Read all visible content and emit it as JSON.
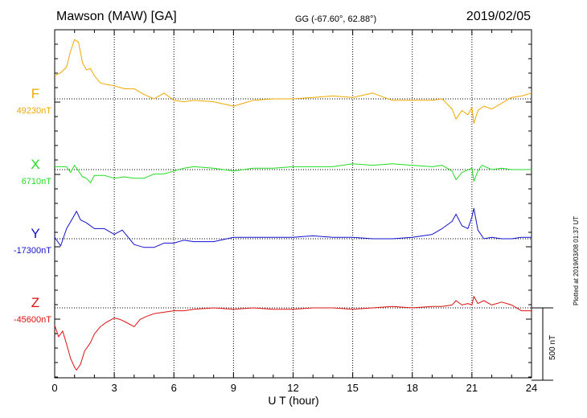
{
  "header": {
    "title": "Mawson (MAW)  [GA]",
    "coords": "GG (-67.60°,  62.88°)",
    "date": "2019/02/05"
  },
  "footer": {
    "plotted": "Plotted at 2019/03/08 01:37 UT",
    "scale_label": "500 nT"
  },
  "chart_data": {
    "type": "line",
    "xlabel": "U T (hour)",
    "xlim": [
      0,
      24
    ],
    "xticks": [
      "0",
      "3",
      "6",
      "9",
      "12",
      "15",
      "18",
      "21",
      "24"
    ],
    "y_unit": "nT",
    "scale_bar_nT": 500,
    "grid": "dotted vertical every 3 hours, dotted baseline per component",
    "series": [
      {
        "name": "F",
        "baseline_label": "49230nT",
        "baseline": 49230,
        "color": "#f0a800",
        "x": [
          0,
          0.3,
          0.6,
          0.8,
          1.0,
          1.2,
          1.4,
          1.6,
          1.8,
          2.0,
          2.3,
          2.6,
          3.0,
          3.5,
          4.0,
          4.5,
          5.0,
          5.5,
          6.0,
          6.5,
          7.0,
          8.0,
          9.0,
          10,
          11,
          12,
          13,
          14,
          15,
          16,
          17,
          18,
          19,
          19.5,
          20,
          20.2,
          20.5,
          20.8,
          21,
          21.1,
          21.3,
          21.6,
          22,
          22.5,
          23,
          23.5,
          24
        ],
        "values": [
          49390,
          49410,
          49450,
          49560,
          49640,
          49620,
          49480,
          49430,
          49440,
          49390,
          49340,
          49330,
          49320,
          49300,
          49300,
          49260,
          49230,
          49270,
          49220,
          49210,
          49220,
          49210,
          49180,
          49220,
          49230,
          49230,
          49240,
          49250,
          49240,
          49270,
          49220,
          49220,
          49220,
          49230,
          49160,
          49090,
          49150,
          49120,
          49170,
          49060,
          49150,
          49180,
          49160,
          49200,
          49240,
          49250,
          49270
        ]
      },
      {
        "name": "X",
        "baseline_label": "6710nT",
        "baseline": 6710,
        "color": "#22dd22",
        "x": [
          0,
          0.3,
          0.6,
          0.8,
          1.0,
          1.2,
          1.4,
          1.6,
          1.8,
          2.0,
          2.5,
          3.0,
          3.5,
          4.0,
          4.5,
          5.0,
          5.5,
          6.0,
          6.5,
          7.0,
          8.0,
          9.0,
          10,
          11,
          12,
          13,
          14,
          15,
          16,
          17,
          18,
          19,
          19.5,
          20,
          20.2,
          20.5,
          21,
          21.1,
          21.3,
          21.5,
          22,
          22.5,
          23,
          23.5,
          24
        ],
        "values": [
          6730,
          6730,
          6730,
          6690,
          6740,
          6700,
          6660,
          6650,
          6620,
          6670,
          6670,
          6650,
          6660,
          6650,
          6650,
          6680,
          6680,
          6700,
          6720,
          6730,
          6720,
          6700,
          6720,
          6720,
          6730,
          6730,
          6730,
          6750,
          6740,
          6750,
          6740,
          6730,
          6740,
          6700,
          6640,
          6690,
          6720,
          6630,
          6700,
          6740,
          6710,
          6720,
          6710,
          6710,
          6710
        ]
      },
      {
        "name": "Y",
        "baseline_label": "-17300nT",
        "baseline": -17300,
        "color": "#1111cc",
        "x": [
          0,
          0.3,
          0.6,
          0.9,
          1.1,
          1.3,
          1.6,
          2.0,
          2.5,
          3.0,
          3.4,
          3.7,
          4.0,
          4.5,
          5.0,
          5.5,
          6.0,
          6.5,
          7.0,
          8.0,
          9.0,
          10,
          11,
          12,
          13,
          14,
          15,
          16,
          17,
          18,
          19,
          19.5,
          20,
          20.2,
          20.5,
          20.8,
          21,
          21.1,
          21.3,
          21.6,
          22,
          22.5,
          23,
          23.5,
          24
        ],
        "values": [
          -17290,
          -17350,
          -17230,
          -17160,
          -17110,
          -17170,
          -17190,
          -17230,
          -17230,
          -17270,
          -17240,
          -17290,
          -17340,
          -17360,
          -17360,
          -17330,
          -17330,
          -17310,
          -17320,
          -17320,
          -17290,
          -17290,
          -17290,
          -17290,
          -17280,
          -17290,
          -17290,
          -17300,
          -17300,
          -17290,
          -17270,
          -17230,
          -17180,
          -17130,
          -17210,
          -17230,
          -17150,
          -17090,
          -17240,
          -17300,
          -17290,
          -17300,
          -17300,
          -17290,
          -17290
        ]
      },
      {
        "name": "Z",
        "baseline_label": "-45600nT",
        "baseline": -45600,
        "color": "#dd1111",
        "x": [
          0,
          0.2,
          0.4,
          0.6,
          0.8,
          1.0,
          1.1,
          1.3,
          1.5,
          1.8,
          2.0,
          2.3,
          2.6,
          3.0,
          3.3,
          3.6,
          4.0,
          4.3,
          4.6,
          5.0,
          5.5,
          6.0,
          6.5,
          7.0,
          8.0,
          9.0,
          10,
          11,
          12,
          13,
          14,
          15,
          16,
          17,
          18,
          19,
          19.5,
          20,
          20.2,
          20.5,
          20.8,
          21,
          21.1,
          21.3,
          21.6,
          22,
          22.5,
          23,
          23.5,
          24
        ],
        "values": [
          -45720,
          -45800,
          -45760,
          -45850,
          -45950,
          -46010,
          -46030,
          -45990,
          -45900,
          -45840,
          -45780,
          -45730,
          -45700,
          -45670,
          -45680,
          -45700,
          -45730,
          -45680,
          -45660,
          -45640,
          -45630,
          -45620,
          -45620,
          -45610,
          -45600,
          -45610,
          -45600,
          -45610,
          -45610,
          -45600,
          -45600,
          -45610,
          -45600,
          -45590,
          -45600,
          -45590,
          -45590,
          -45580,
          -45550,
          -45580,
          -45570,
          -45580,
          -45520,
          -45570,
          -45550,
          -45580,
          -45560,
          -45580,
          -45620,
          -45620
        ]
      }
    ]
  }
}
